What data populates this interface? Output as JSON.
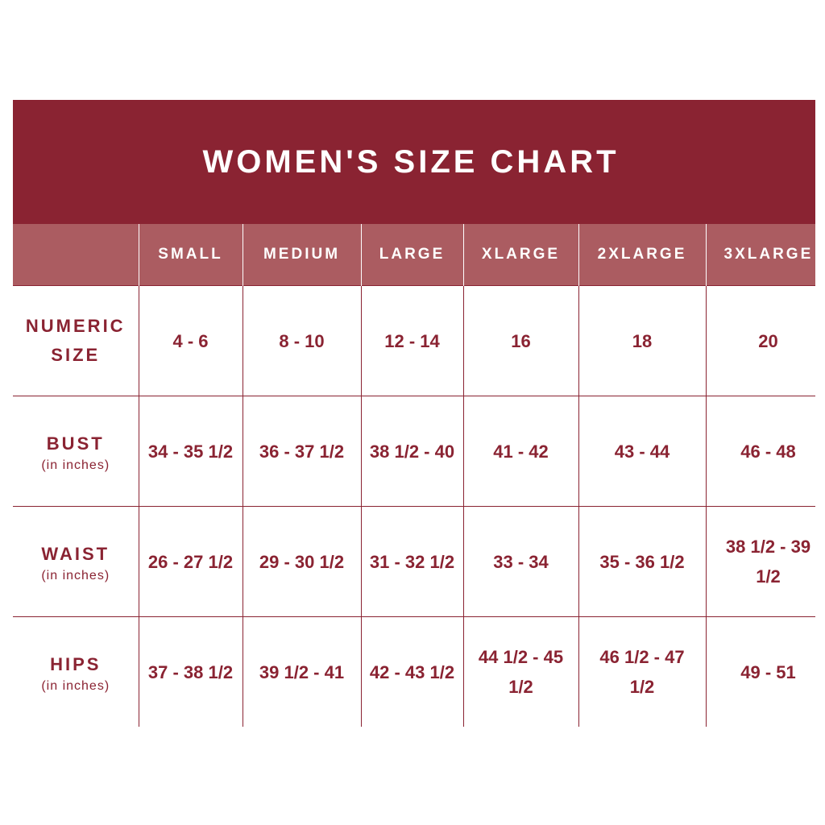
{
  "title": "WOMEN'S SIZE CHART",
  "columns": [
    "",
    "SMALL",
    "MEDIUM",
    "LARGE",
    "XLARGE",
    "2XLARGE",
    "3XLARGE"
  ],
  "rows": [
    {
      "label": "NUMERIC SIZE",
      "sub": "",
      "values": [
        "4 - 6",
        "8 - 10",
        "12 - 14",
        "16",
        "18",
        "20"
      ]
    },
    {
      "label": "BUST",
      "sub": "(in inches)",
      "values": [
        "34 - 35 1/2",
        "36 - 37 1/2",
        "38 1/2 - 40",
        "41 - 42",
        "43 - 44",
        "46 - 48"
      ]
    },
    {
      "label": "WAIST",
      "sub": "(in inches)",
      "values": [
        "26 - 27 1/2",
        "29 - 30 1/2",
        "31 - 32 1/2",
        "33 - 34",
        "35 - 36 1/2",
        "38 1/2 - 39 1/2"
      ]
    },
    {
      "label": "HIPS",
      "sub": "(in inches)",
      "values": [
        "37 - 38 1/2",
        "39 1/2 - 41",
        "42 - 43 1/2",
        "44 1/2 - 45 1/2",
        "46 1/2 - 47 1/2",
        "49 - 51"
      ]
    }
  ],
  "colors": {
    "title_bg": "#8a2332",
    "header_bg": "#ab5c61",
    "text": "#8a2332"
  }
}
